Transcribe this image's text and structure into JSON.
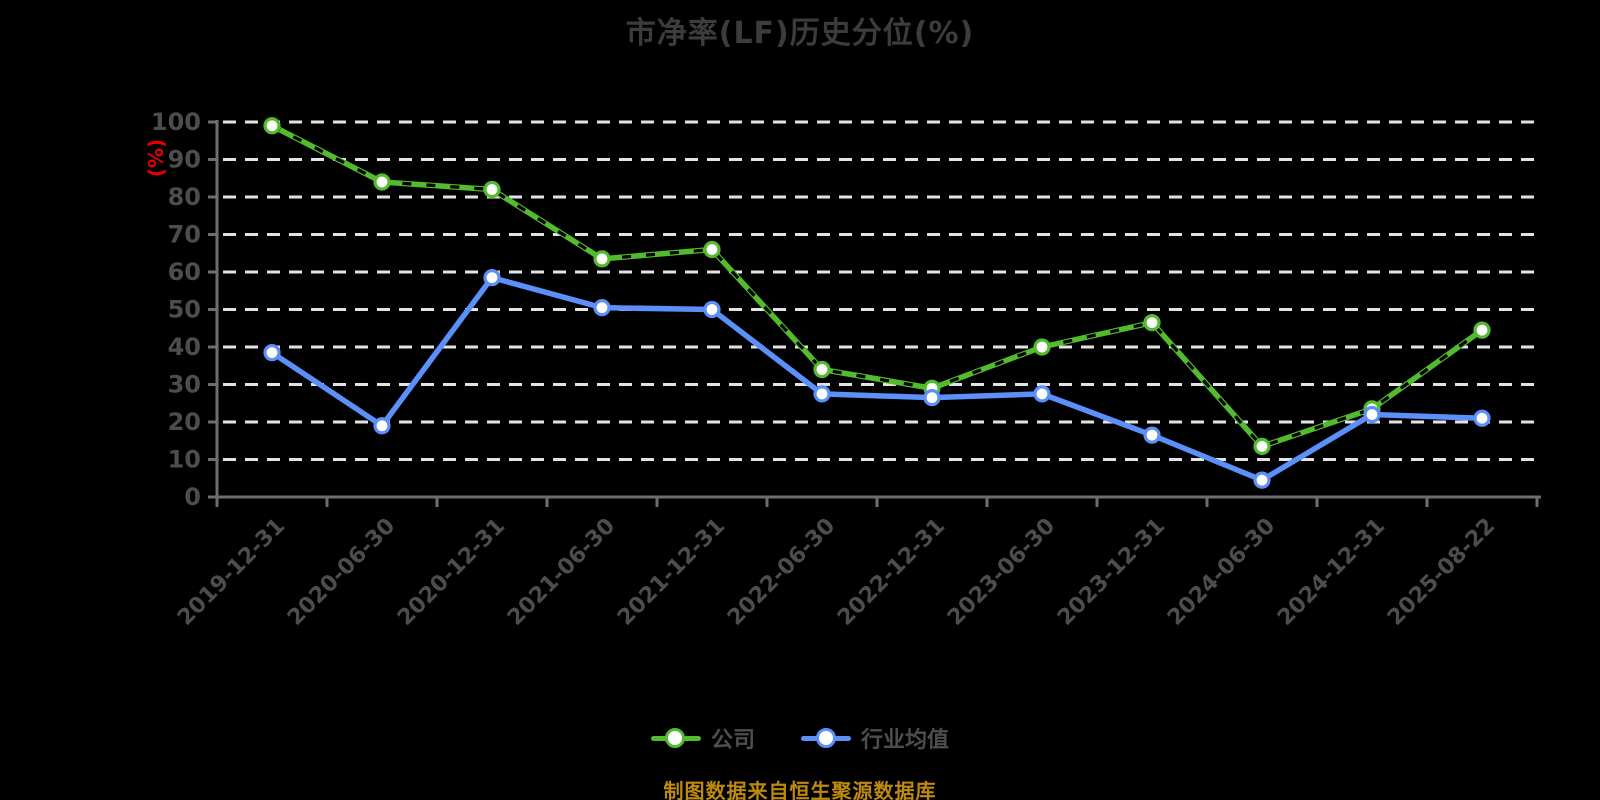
{
  "title": "市净率(LF)历史分位(%)",
  "footer": {
    "text": "制图数据来自恒生聚源数据库",
    "color": "#bd8a0e"
  },
  "colors": {
    "background": "#000000",
    "grid": "#e3e3e3",
    "axis": "#6e6e6e",
    "tick_label": "#4d4d4d",
    "title_text": "#3c3c3c",
    "legend_text": "#4e4e4e",
    "company_green": "#53bb2e",
    "industry_blue": "#5b8ff9",
    "ylabel_red": "#e60000"
  },
  "chart_data": {
    "type": "line",
    "title": "市净率(LF)历史分位(%)",
    "xlabel": "",
    "ylabel": "(%)",
    "ylabel_color": "#e60000",
    "ylim": [
      0,
      100
    ],
    "yticks": [
      0,
      10,
      20,
      30,
      40,
      50,
      60,
      70,
      80,
      90,
      100
    ],
    "grid": "horizontal-dashed",
    "legend_position": "bottom",
    "background": "#000000",
    "categories": [
      "2019-12-31",
      "2020-06-30",
      "2020-12-31",
      "2021-06-30",
      "2021-12-31",
      "2022-06-30",
      "2022-12-31",
      "2023-06-30",
      "2023-12-31",
      "2024-06-30",
      "2024-12-31",
      "2025-08-22"
    ],
    "series": [
      {
        "name": "公司",
        "color": "#53bb2e",
        "marker": "white-circle",
        "line_style": "solid-with-dark-dash-overlay",
        "values": [
          99,
          84,
          82,
          63.5,
          66,
          34,
          29,
          40,
          46.5,
          13.5,
          23.5,
          44.5
        ]
      },
      {
        "name": "行业均值",
        "color": "#5b8ff9",
        "marker": "white-circle",
        "line_style": "solid",
        "values": [
          38.5,
          19,
          58.5,
          50.5,
          50,
          27.5,
          26.5,
          27.5,
          16.5,
          4.5,
          22,
          21
        ]
      }
    ]
  }
}
